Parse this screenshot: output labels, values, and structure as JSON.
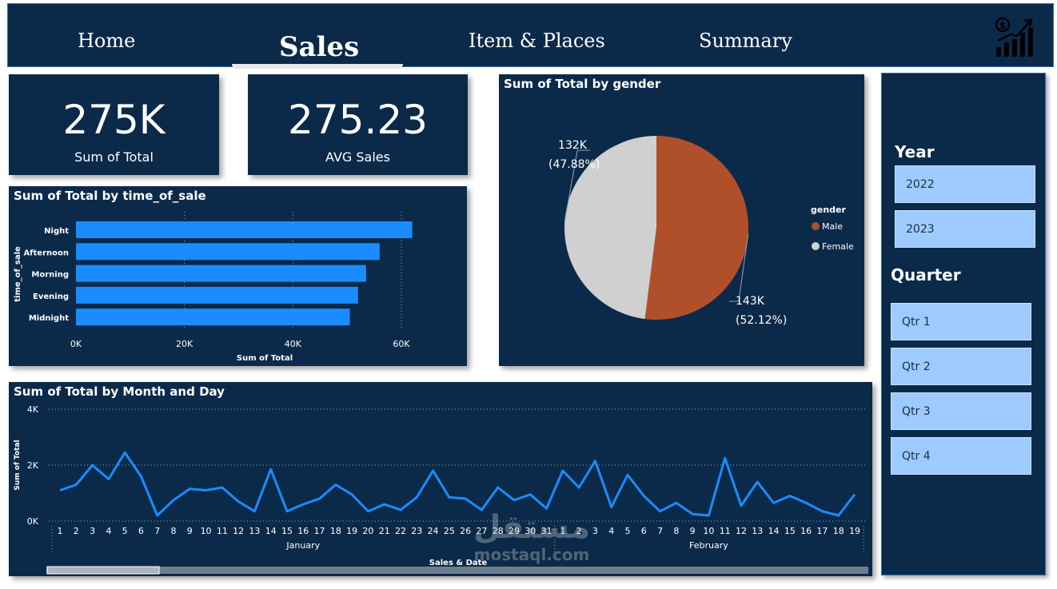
{
  "nav": {
    "tabs": [
      {
        "label": "Home"
      },
      {
        "label": "Sales"
      },
      {
        "label": "Item & Places"
      },
      {
        "label": "Summary"
      }
    ],
    "active": "Sales",
    "logo_icon": "money-growth-chart-icon"
  },
  "kpis": {
    "total": {
      "value": "275K",
      "label": "Sum of Total"
    },
    "avg": {
      "value": "275.23",
      "label": "AVG Sales"
    }
  },
  "slicers": {
    "year": {
      "title": "Year",
      "options": [
        "2022",
        "2023"
      ]
    },
    "quarter": {
      "title": "Quarter",
      "options": [
        "Qtr 1",
        "Qtr 2",
        "Qtr 3",
        "Qtr 4"
      ]
    }
  },
  "watermark": {
    "script": "مستقل",
    "latin": "mostaql.com"
  },
  "colors": {
    "background": "#0b2a4a",
    "accent": "#1a8cff",
    "male": "#b0502a",
    "female": "#d0d0d0",
    "slicer": "#9dcaff"
  },
  "chart_data": [
    {
      "type": "bar",
      "orientation": "horizontal",
      "title": "Sum of Total by time_of_sale",
      "ylabel": "time_of_sale",
      "xlabel": "Sum of Total",
      "categories": [
        "Night",
        "Afternoon",
        "Morning",
        "Evening",
        "Midnight"
      ],
      "values": [
        62000,
        56000,
        53500,
        52000,
        50500
      ],
      "xlim": [
        0,
        60000
      ],
      "xticks": [
        "0K",
        "20K",
        "40K",
        "60K"
      ],
      "grid": true
    },
    {
      "type": "pie",
      "title": "Sum of Total by gender",
      "legend_title": "gender",
      "legend_position": "right",
      "slices": [
        {
          "name": "Male",
          "value": 143000,
          "label": "143K",
          "pct": "(52.12%)"
        },
        {
          "name": "Female",
          "value": 132000,
          "label": "132K",
          "pct": "(47.88%)"
        }
      ]
    },
    {
      "type": "line",
      "title": "Sum of Total by Month and Day",
      "ylabel": "Sum of Total",
      "xlabel": "Sales & Date",
      "yticks": [
        "4K",
        "2K",
        "0K"
      ],
      "ylim": [
        0,
        4000
      ],
      "months": [
        {
          "name": "January",
          "days": 31
        },
        {
          "name": "February",
          "days": 19
        }
      ],
      "x": [
        1,
        2,
        3,
        4,
        5,
        6,
        7,
        8,
        9,
        10,
        11,
        12,
        13,
        14,
        15,
        16,
        17,
        18,
        19,
        20,
        21,
        22,
        23,
        24,
        25,
        26,
        27,
        28,
        29,
        30,
        31,
        1,
        2,
        3,
        4,
        5,
        6,
        7,
        8,
        9,
        10,
        11,
        12,
        13,
        14,
        15,
        16,
        17,
        18,
        19
      ],
      "values": [
        1100,
        1300,
        2000,
        1500,
        2450,
        1600,
        200,
        750,
        1150,
        1100,
        1200,
        700,
        350,
        1850,
        350,
        600,
        800,
        1300,
        950,
        350,
        600,
        400,
        850,
        1800,
        850,
        800,
        400,
        1200,
        750,
        950,
        450,
        1800,
        1200,
        2150,
        500,
        1650,
        900,
        350,
        650,
        250,
        200,
        2250,
        550,
        1400,
        650,
        900,
        650,
        350,
        200,
        950
      ],
      "grid": true
    }
  ]
}
